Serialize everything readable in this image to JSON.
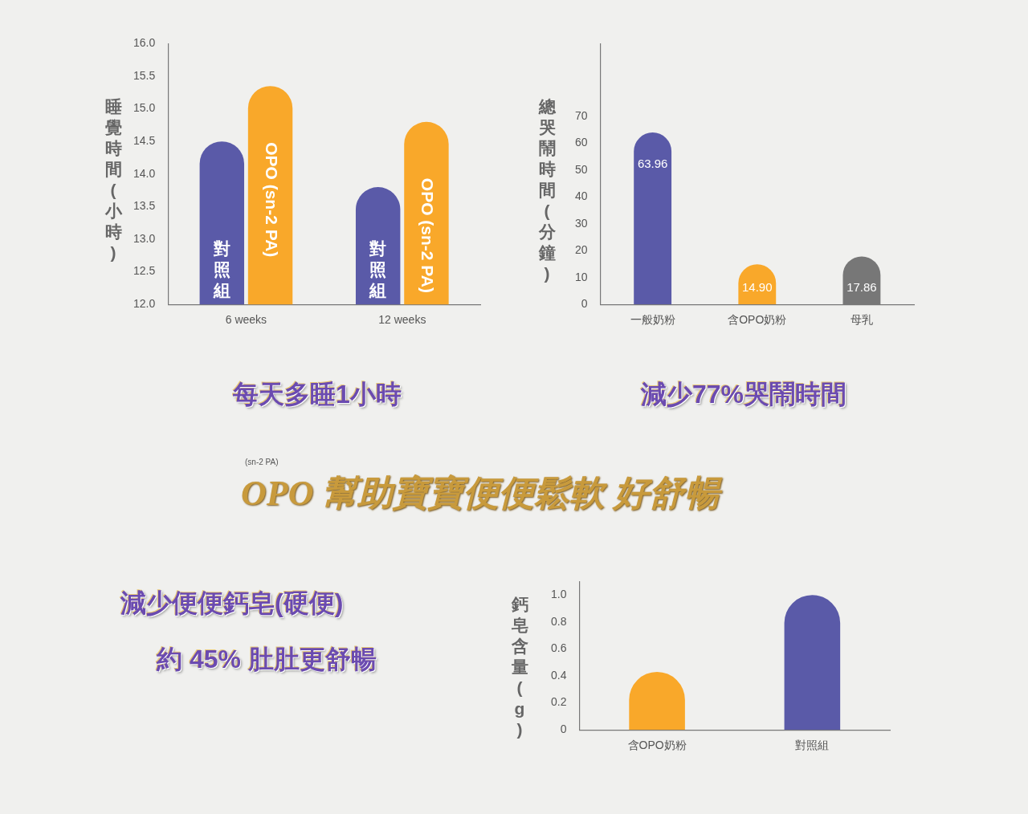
{
  "chart_data": [
    {
      "type": "bar",
      "ylabel": "睡覺時間(小時)",
      "categories": [
        "6 weeks",
        "12 weeks"
      ],
      "series": [
        {
          "name": "對照組",
          "color": "#5a5aa8",
          "values": [
            14.5,
            13.8
          ]
        },
        {
          "name": "OPO (sn-2 PA)",
          "color": "#f9a82a",
          "values": [
            15.35,
            14.8
          ]
        }
      ],
      "ylim": [
        12.0,
        16.0
      ],
      "yticks": [
        {
          "value": 12,
          "label": "12.0"
        },
        12.5,
        {
          "value": 13,
          "label": "13.0"
        },
        13.5,
        {
          "value": 14,
          "label": "14.0"
        },
        14.5,
        {
          "value": 15,
          "label": "15.0"
        },
        15.5,
        {
          "value": 16,
          "label": "16.0"
        }
      ],
      "grid": false,
      "legend": false,
      "annotations": [
        "每天多睡1小時"
      ]
    },
    {
      "type": "bar",
      "ylabel": "總哭鬧時間(分鐘)",
      "categories": [
        "一般奶粉",
        "含OPO奶粉",
        "母乳"
      ],
      "values": [
        63.96,
        14.9,
        17.86
      ],
      "colors": [
        "#5a5aa8",
        "#f9a82a",
        "#777777"
      ],
      "value_labels": [
        "63.96",
        "14.90",
        "17.86"
      ],
      "ylim": [
        0,
        97
      ],
      "yticks": [
        0,
        10,
        20,
        30,
        40,
        50,
        60,
        70
      ],
      "grid": false,
      "legend": false,
      "annotations": [
        "減少77%哭鬧時間"
      ]
    },
    {
      "type": "bar",
      "title": "OPO 幫助寶寶便便鬆軟 好舒暢",
      "ylabel": "鈣皂含量(g)",
      "categories": [
        "含OPO奶粉",
        "對照組"
      ],
      "values": [
        0.43,
        1.0
      ],
      "colors": [
        "#f9a82a",
        "#5a5aa8"
      ],
      "ylim": [
        0,
        1.1
      ],
      "yticks": [
        0,
        0.2,
        0.4,
        0.6,
        0.8,
        {
          "value": 1,
          "label": "1.0"
        }
      ],
      "grid": false,
      "legend": false,
      "annotations": [
        "(sn-2 PA)",
        "減少便便鈣皂(硬便)",
        "約 45% 肚肚更舒暢"
      ]
    }
  ]
}
